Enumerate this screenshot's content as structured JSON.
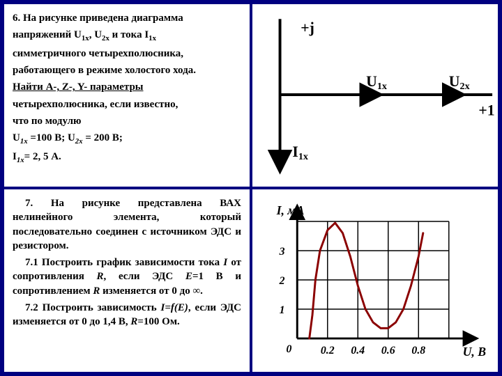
{
  "problem6": {
    "line1a": "6. На рисунке приведена диаграмма",
    "line2a": "напряжений U",
    "line2b": "1х",
    "line2c": ", U",
    "line2d": "2х",
    "line2e": " и тока I",
    "line2f": "1х",
    "line3": "симметричного четырехполюсника,",
    "line4": "работающего в режиме холостого хода.",
    "line5": "Найти A-,  Z-, Y- параметры",
    "line6": "четырехполюсника, если известно,",
    "line7": "что по модулю",
    "line8a": "U",
    "line8b": "1х",
    "line8c": " =100 В; U",
    "line8d": "2х",
    "line8e": " = 200 В;",
    "line9a": "I",
    "line9b": "1х",
    "line9c": "= 2, 5 А."
  },
  "phasor": {
    "plus_j": "+j",
    "u1x": "U",
    "u1x_sub": "1х",
    "u2x": "U",
    "u2x_sub": "2х",
    "plus_one": "+1",
    "i1x": "I",
    "i1x_sub": "1х",
    "axis_color": "#000000",
    "arrow_color": "#000000",
    "label_fontsize": 22
  },
  "problem7": {
    "p1": "7. На рисунке представлена ВАХ нелинейного элемента, который последовательно соединен с источником ЭДС и резистором.",
    "p2_a": "7.1 Построить график зависимости тока ",
    "p2_i": "I",
    "p2_b": " от сопротивления ",
    "p2_r": "R",
    "p2_c": ", если ЭДС ",
    "p2_e": "E",
    "p2_d": "=1 В и сопротивлением ",
    "p2_r2": "R",
    "p2_e2": " изменяется от 0 до ∞.",
    "p3_a": "7.2 Построить зависимость ",
    "p3_eq": "I=f(E)",
    "p3_b": ", если ЭДС изменяется от 0 до 1,4 В, ",
    "p3_r": "R",
    "p3_c": "=100 Ом."
  },
  "chart": {
    "type": "line",
    "ylabel": "I, мА",
    "xlabel": "U, В",
    "x_ticks": [
      "0.2",
      "0.4",
      "0.6",
      "0.8"
    ],
    "y_ticks": [
      "1",
      "2",
      "3"
    ],
    "zero_label": "0",
    "xlim": [
      0,
      1.0
    ],
    "ylim": [
      0,
      4.0
    ],
    "grid_color": "#000000",
    "curve_color": "#8b0000",
    "curve_width": 3,
    "axis_color": "#000000",
    "label_fontsize": 18,
    "tick_fontsize": 16,
    "curve_points": [
      [
        0.08,
        0.0
      ],
      [
        0.1,
        0.8
      ],
      [
        0.12,
        2.0
      ],
      [
        0.15,
        3.0
      ],
      [
        0.2,
        3.7
      ],
      [
        0.25,
        3.95
      ],
      [
        0.3,
        3.6
      ],
      [
        0.35,
        2.8
      ],
      [
        0.4,
        1.8
      ],
      [
        0.45,
        1.0
      ],
      [
        0.5,
        0.55
      ],
      [
        0.55,
        0.35
      ],
      [
        0.6,
        0.35
      ],
      [
        0.65,
        0.55
      ],
      [
        0.7,
        1.0
      ],
      [
        0.75,
        1.8
      ],
      [
        0.8,
        2.8
      ],
      [
        0.83,
        3.6
      ]
    ]
  }
}
